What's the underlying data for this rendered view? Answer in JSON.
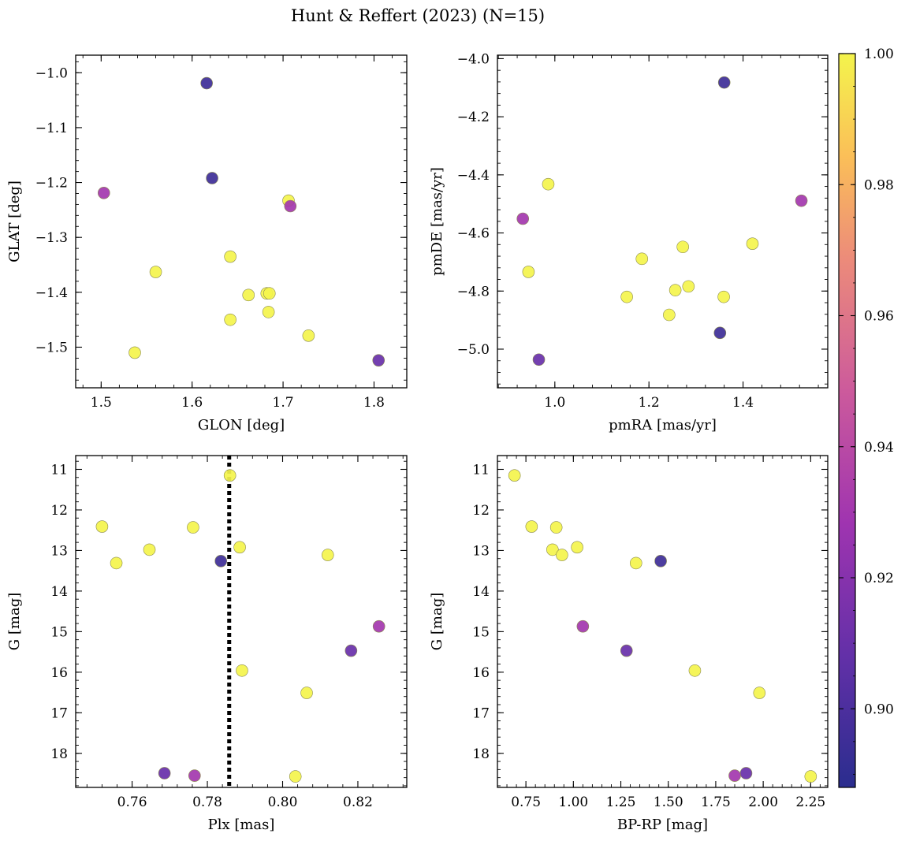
{
  "figure": {
    "title": "Hunt & Reffert (2023) (N=15)"
  },
  "colorbar": {
    "colormap": "plasma",
    "vmin": 0.888,
    "vmax": 1.0,
    "ticks": [
      "0.90",
      "0.92",
      "0.94",
      "0.96",
      "0.98",
      "1.00"
    ]
  },
  "chart_data": [
    {
      "type": "scatter",
      "id": "glon-glat",
      "xlabel": "GLON [deg]",
      "ylabel": "GLAT [deg]",
      "xlim": [
        1.472,
        1.836
      ],
      "ylim": [
        -1.574,
        -0.968
      ],
      "invert_y": false,
      "xticks": [
        "1.5",
        "1.6",
        "1.7",
        "1.8"
      ],
      "yticks": [
        "-1.5",
        "-1.4",
        "-1.3",
        "-1.2",
        "-1.1",
        "-1.0"
      ],
      "points": [
        {
          "x": 1.503,
          "y": -1.219,
          "c": 0.93
        },
        {
          "x": 1.537,
          "y": -1.51,
          "c": 1.0
        },
        {
          "x": 1.56,
          "y": -1.363,
          "c": 1.0
        },
        {
          "x": 1.616,
          "y": -1.019,
          "c": 0.895
        },
        {
          "x": 1.622,
          "y": -1.192,
          "c": 0.895
        },
        {
          "x": 1.642,
          "y": -1.335,
          "c": 1.0
        },
        {
          "x": 1.642,
          "y": -1.45,
          "c": 1.0
        },
        {
          "x": 1.662,
          "y": -1.405,
          "c": 1.0
        },
        {
          "x": 1.682,
          "y": -1.402,
          "c": 1.0
        },
        {
          "x": 1.684,
          "y": -1.436,
          "c": 1.0
        },
        {
          "x": 1.706,
          "y": -1.233,
          "c": 1.0
        },
        {
          "x": 1.708,
          "y": -1.243,
          "c": 0.93
        },
        {
          "x": 1.728,
          "y": -1.479,
          "c": 1.0
        },
        {
          "x": 1.805,
          "y": -1.524,
          "c": 0.91
        },
        {
          "x": 1.685,
          "y": -1.402,
          "c": 1.0
        }
      ]
    },
    {
      "type": "scatter",
      "id": "pmra-pmde",
      "xlabel": "pmRA [mas/yr]",
      "ylabel": "pmDE [mas/yr]",
      "xlim": [
        0.878,
        1.58
      ],
      "ylim": [
        -5.133,
        -3.988
      ],
      "invert_y": false,
      "xticks": [
        "1.0",
        "1.2",
        "1.4"
      ],
      "yticks": [
        "-5.0",
        "-4.8",
        "-4.6",
        "-4.4",
        "-4.2",
        "-4.0"
      ],
      "points": [
        {
          "x": 0.932,
          "y": -4.551,
          "c": 0.93
        },
        {
          "x": 0.944,
          "y": -4.734,
          "c": 1.0
        },
        {
          "x": 0.966,
          "y": -5.036,
          "c": 0.91
        },
        {
          "x": 0.986,
          "y": -4.432,
          "c": 1.0
        },
        {
          "x": 1.153,
          "y": -4.82,
          "c": 1.0
        },
        {
          "x": 1.185,
          "y": -4.689,
          "c": 1.0
        },
        {
          "x": 1.243,
          "y": -4.882,
          "c": 1.0
        },
        {
          "x": 1.256,
          "y": -4.797,
          "c": 1.0
        },
        {
          "x": 1.272,
          "y": -4.648,
          "c": 1.0
        },
        {
          "x": 1.284,
          "y": -4.784,
          "c": 1.0
        },
        {
          "x": 1.351,
          "y": -4.944,
          "c": 0.895
        },
        {
          "x": 1.36,
          "y": -4.082,
          "c": 0.895
        },
        {
          "x": 1.359,
          "y": -4.82,
          "c": 1.0
        },
        {
          "x": 1.42,
          "y": -4.637,
          "c": 1.0
        },
        {
          "x": 1.524,
          "y": -4.489,
          "c": 0.93
        }
      ]
    },
    {
      "type": "scatter",
      "id": "plx-g",
      "xlabel": "Plx [mas]",
      "ylabel": "G [mag]",
      "xlim": [
        0.745,
        0.833
      ],
      "ylim": [
        18.84,
        10.66
      ],
      "invert_y": true,
      "xticks": [
        "0.76",
        "0.78",
        "0.80",
        "0.82"
      ],
      "yticks": [
        "11",
        "12",
        "13",
        "14",
        "15",
        "16",
        "17",
        "18"
      ],
      "vline": 0.7858,
      "points": [
        {
          "x": 0.752,
          "y": 12.41,
          "c": 1.0
        },
        {
          "x": 0.7558,
          "y": 13.31,
          "c": 1.0
        },
        {
          "x": 0.7646,
          "y": 12.98,
          "c": 1.0
        },
        {
          "x": 0.7686,
          "y": 18.49,
          "c": 0.91
        },
        {
          "x": 0.7762,
          "y": 12.43,
          "c": 1.0
        },
        {
          "x": 0.7766,
          "y": 18.55,
          "c": 0.93
        },
        {
          "x": 0.7836,
          "y": 13.26,
          "c": 0.895
        },
        {
          "x": 0.786,
          "y": 11.15,
          "c": 1.0
        },
        {
          "x": 0.7886,
          "y": 12.92,
          "c": 1.0
        },
        {
          "x": 0.7892,
          "y": 15.96,
          "c": 1.0
        },
        {
          "x": 0.8034,
          "y": 18.57,
          "c": 1.0
        },
        {
          "x": 0.8064,
          "y": 16.51,
          "c": 1.0
        },
        {
          "x": 0.812,
          "y": 13.11,
          "c": 1.0
        },
        {
          "x": 0.8182,
          "y": 15.47,
          "c": 0.91
        },
        {
          "x": 0.8256,
          "y": 14.87,
          "c": 0.93
        }
      ]
    },
    {
      "type": "scatter",
      "id": "bprp-g",
      "xlabel": "BP-RP [mag]",
      "ylabel": "G [mag]",
      "xlim": [
        0.6,
        2.34
      ],
      "ylim": [
        18.84,
        10.66
      ],
      "invert_y": true,
      "xticks": [
        "0.75",
        "1.00",
        "1.25",
        "1.50",
        "1.75",
        "2.00",
        "2.25"
      ],
      "xtick_values": [
        0.75,
        1.0,
        1.25,
        1.5,
        1.75,
        2.0,
        2.25
      ],
      "yticks": [
        "11",
        "12",
        "13",
        "14",
        "15",
        "16",
        "17",
        "18"
      ],
      "points": [
        {
          "x": 0.69,
          "y": 11.15,
          "c": 1.0
        },
        {
          "x": 0.78,
          "y": 12.41,
          "c": 1.0
        },
        {
          "x": 0.91,
          "y": 12.43,
          "c": 1.0
        },
        {
          "x": 0.89,
          "y": 12.98,
          "c": 1.0
        },
        {
          "x": 0.94,
          "y": 13.11,
          "c": 1.0
        },
        {
          "x": 1.02,
          "y": 12.92,
          "c": 1.0
        },
        {
          "x": 1.33,
          "y": 13.31,
          "c": 1.0
        },
        {
          "x": 1.46,
          "y": 13.26,
          "c": 0.895
        },
        {
          "x": 1.05,
          "y": 14.87,
          "c": 0.93
        },
        {
          "x": 1.28,
          "y": 15.47,
          "c": 0.91
        },
        {
          "x": 1.64,
          "y": 15.96,
          "c": 1.0
        },
        {
          "x": 1.98,
          "y": 16.51,
          "c": 1.0
        },
        {
          "x": 1.91,
          "y": 18.49,
          "c": 0.91
        },
        {
          "x": 1.85,
          "y": 18.55,
          "c": 0.93
        },
        {
          "x": 2.25,
          "y": 18.57,
          "c": 1.0
        }
      ]
    }
  ]
}
